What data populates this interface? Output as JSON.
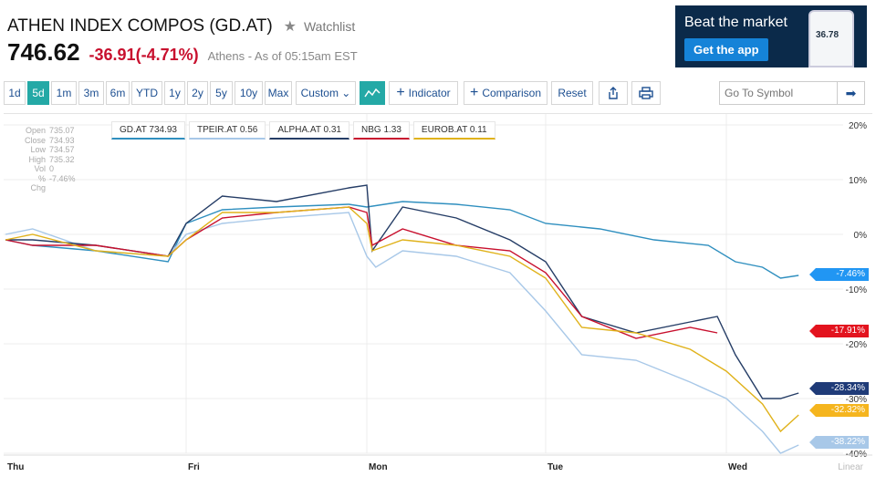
{
  "header": {
    "title": "ATHEN INDEX COMPOS (GD.AT)",
    "watchlist": "Watchlist",
    "price": "746.62",
    "change": "-36.91",
    "change_pct": "(-4.71%)",
    "asof": "Athens - As of 05:15am EST"
  },
  "ad": {
    "title": "Beat the market",
    "button": "Get the app",
    "phone_value": "36.78"
  },
  "toolbar": {
    "ranges": [
      "1d",
      "5d",
      "1m",
      "3m",
      "6m",
      "YTD",
      "1y",
      "2y",
      "5y",
      "10y",
      "Max"
    ],
    "active_range": "5d",
    "custom": "Custom ⌄",
    "indicator": "Indicator",
    "comparison": "Comparison",
    "reset": "Reset",
    "search_placeholder": "Go To Symbol"
  },
  "crosshair": [
    {
      "k": "Open",
      "v": "735.07"
    },
    {
      "k": "Close",
      "v": "734.93"
    },
    {
      "k": "Low",
      "v": "734.57"
    },
    {
      "k": "High",
      "v": "735.32"
    },
    {
      "k": "Vol",
      "v": "0"
    },
    {
      "k": "% Chg",
      "v": "-7.46%"
    }
  ],
  "colors": {
    "accent": "#24a9a6",
    "negative": "#c8102e"
  },
  "chart_data": {
    "type": "line",
    "x_labels": [
      "Thu",
      "Fri",
      "Mon",
      "Tue",
      "Wed"
    ],
    "scale_label": "Linear",
    "y_ticks": [
      "20%",
      "10%",
      "0%",
      "-10%",
      "-20%",
      "-30%",
      "-40%"
    ],
    "ylim": [
      -40,
      20
    ],
    "series": [
      {
        "name": "GD.AT",
        "legend": "GD.AT 734.93",
        "color": "#2f8fbf",
        "end_label": "-7.46%",
        "badge_color": "#2196f3",
        "points": [
          [
            0,
            -1
          ],
          [
            0.15,
            -2
          ],
          [
            0.5,
            -3
          ],
          [
            0.9,
            -5
          ],
          [
            1.0,
            2
          ],
          [
            1.2,
            4.5
          ],
          [
            1.5,
            5
          ],
          [
            1.9,
            5.5
          ],
          [
            2.0,
            5
          ],
          [
            2.2,
            6
          ],
          [
            2.5,
            5.5
          ],
          [
            2.8,
            4.5
          ],
          [
            3.0,
            2
          ],
          [
            3.3,
            1
          ],
          [
            3.6,
            -1
          ],
          [
            3.9,
            -2
          ],
          [
            4.05,
            -5
          ],
          [
            4.2,
            -6
          ],
          [
            4.3,
            -8
          ],
          [
            4.4,
            -7.5
          ]
        ]
      },
      {
        "name": "TPEIR.AT",
        "legend": "TPEIR.AT 0.56",
        "color": "#a8c8e8",
        "end_label": "-38.22%",
        "badge_color": "#a8c8e8",
        "points": [
          [
            0,
            0
          ],
          [
            0.15,
            1
          ],
          [
            0.5,
            -3
          ],
          [
            0.9,
            -4
          ],
          [
            1.0,
            0
          ],
          [
            1.2,
            2
          ],
          [
            1.5,
            3
          ],
          [
            1.9,
            4
          ],
          [
            2.0,
            -4
          ],
          [
            2.05,
            -6
          ],
          [
            2.2,
            -3
          ],
          [
            2.5,
            -4
          ],
          [
            2.8,
            -7
          ],
          [
            3.0,
            -14
          ],
          [
            3.2,
            -22
          ],
          [
            3.5,
            -23
          ],
          [
            3.8,
            -27
          ],
          [
            4.0,
            -30
          ],
          [
            4.2,
            -36
          ],
          [
            4.3,
            -40
          ],
          [
            4.4,
            -38.5
          ]
        ]
      },
      {
        "name": "ALPHA.AT",
        "legend": "ALPHA.AT 0.31",
        "color": "#253d66",
        "end_label": "-28.34%",
        "badge_color": "#1f3b78",
        "points": [
          [
            0,
            -1
          ],
          [
            0.15,
            -1
          ],
          [
            0.5,
            -2
          ],
          [
            0.9,
            -4
          ],
          [
            1.0,
            2
          ],
          [
            1.2,
            7
          ],
          [
            1.5,
            6
          ],
          [
            1.9,
            8.5
          ],
          [
            2.0,
            9
          ],
          [
            2.03,
            -3
          ],
          [
            2.2,
            5
          ],
          [
            2.5,
            3
          ],
          [
            2.8,
            -1
          ],
          [
            3.0,
            -5
          ],
          [
            3.2,
            -15
          ],
          [
            3.5,
            -18
          ],
          [
            3.8,
            -16
          ],
          [
            3.95,
            -15
          ],
          [
            4.05,
            -22
          ],
          [
            4.2,
            -30
          ],
          [
            4.3,
            -30
          ],
          [
            4.4,
            -29
          ]
        ]
      },
      {
        "name": "NBG",
        "legend": "NBG 1.33",
        "color": "#c8102e",
        "end_label": "-17.91%",
        "badge_color": "#e3131e",
        "points": [
          [
            0,
            -1
          ],
          [
            0.15,
            -2
          ],
          [
            0.5,
            -2
          ],
          [
            0.9,
            -4
          ],
          [
            1.0,
            -1
          ],
          [
            1.2,
            3
          ],
          [
            1.5,
            4
          ],
          [
            1.9,
            5
          ],
          [
            2.0,
            4
          ],
          [
            2.03,
            -2
          ],
          [
            2.2,
            1
          ],
          [
            2.5,
            -2
          ],
          [
            2.8,
            -3
          ],
          [
            3.0,
            -7
          ],
          [
            3.2,
            -15
          ],
          [
            3.5,
            -19
          ],
          [
            3.8,
            -17
          ],
          [
            3.95,
            -18
          ]
        ]
      },
      {
        "name": "EUROB.AT",
        "legend": "EUROB.AT 0.11",
        "color": "#e0b21b",
        "end_label": "-32.32%",
        "badge_color": "#f5b51e",
        "points": [
          [
            0,
            -1
          ],
          [
            0.15,
            0
          ],
          [
            0.5,
            -3
          ],
          [
            0.9,
            -4
          ],
          [
            1.0,
            -1
          ],
          [
            1.2,
            4
          ],
          [
            1.5,
            4
          ],
          [
            1.9,
            5
          ],
          [
            2.0,
            2
          ],
          [
            2.03,
            -3
          ],
          [
            2.2,
            -1
          ],
          [
            2.5,
            -2
          ],
          [
            2.8,
            -4
          ],
          [
            3.0,
            -8
          ],
          [
            3.2,
            -17
          ],
          [
            3.5,
            -18
          ],
          [
            3.8,
            -21
          ],
          [
            4.0,
            -25
          ],
          [
            4.2,
            -31
          ],
          [
            4.3,
            -36
          ],
          [
            4.4,
            -33
          ]
        ]
      }
    ]
  }
}
